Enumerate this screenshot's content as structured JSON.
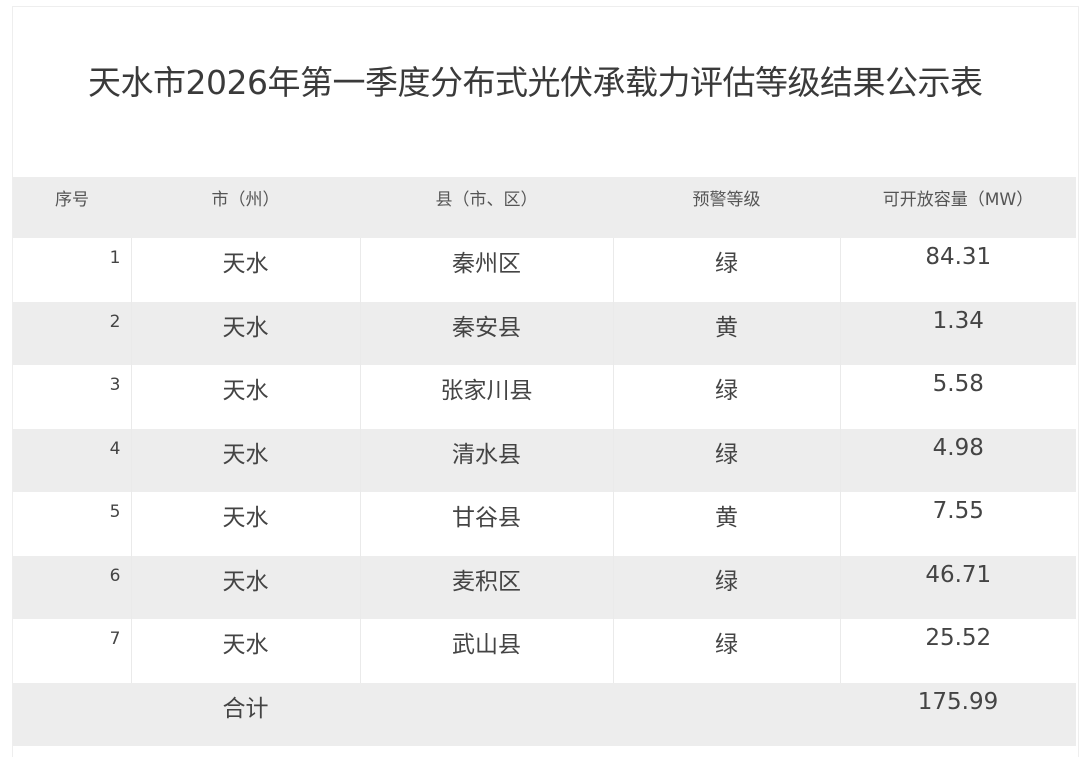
{
  "title": "天水市2026年第一季度分布式光伏承载力评估等级结果公示表",
  "table": {
    "headers": [
      "序号",
      "市（州）",
      "县（市、区）",
      "预警等级",
      "可开放容量（MW）"
    ],
    "rows": [
      [
        "1",
        "天水",
        "秦州区",
        "绿",
        "84.31"
      ],
      [
        "2",
        "天水",
        "秦安县",
        "黄",
        "1.34"
      ],
      [
        "3",
        "天水",
        "张家川县",
        "绿",
        "5.58"
      ],
      [
        "4",
        "天水",
        "清水县",
        "绿",
        "4.98"
      ],
      [
        "5",
        "天水",
        "甘谷县",
        "黄",
        "7.55"
      ],
      [
        "6",
        "天水",
        "麦积区",
        "绿",
        "46.71"
      ],
      [
        "7",
        "天水",
        "武山县",
        "绿",
        "25.52"
      ]
    ],
    "total": {
      "label": "合计",
      "value": "175.99"
    }
  }
}
